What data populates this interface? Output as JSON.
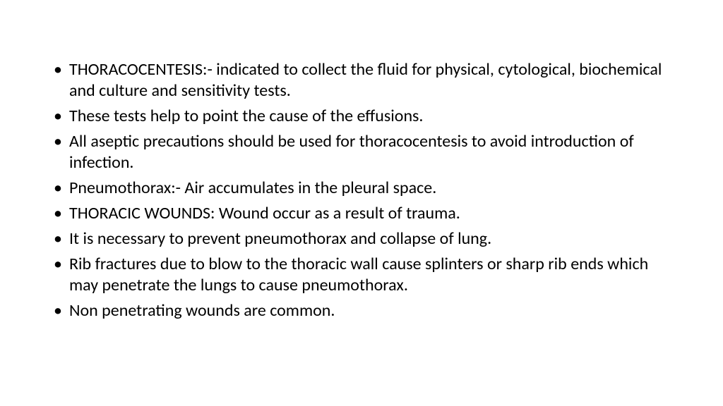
{
  "slide": {
    "background_color": "#ffffff",
    "text_color": "#000000",
    "font_size": 24,
    "bullets": [
      "THORACOCENTESIS:- indicated to collect the fluid for physical, cytological, biochemical and culture and sensitivity tests.",
      "These tests help to point the cause of the effusions.",
      "All aseptic precautions should be used for thoracocentesis to avoid introduction of infection.",
      "Pneumothorax:- Air accumulates in the pleural space.",
      "THORACIC WOUNDS: Wound occur as a result of trauma.",
      "It is necessary to prevent pneumothorax and collapse of lung.",
      "Rib fractures due to blow to the thoracic wall cause splinters or sharp rib ends which may penetrate the lungs to cause pneumothorax.",
      "Non penetrating wounds are common."
    ]
  }
}
